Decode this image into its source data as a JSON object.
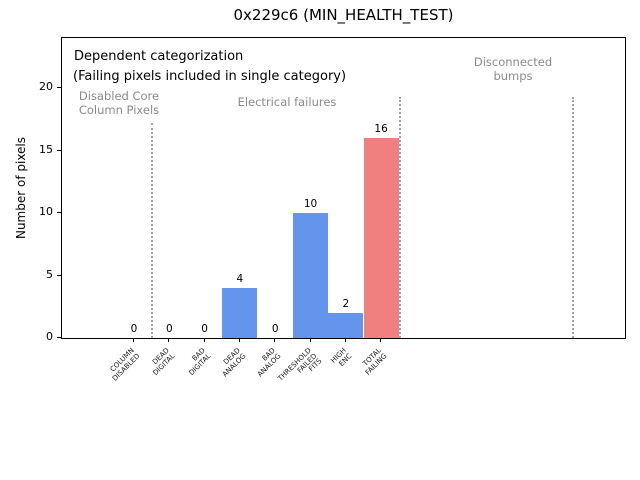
{
  "window": {
    "title": "0x229c6 (MIN_HEALTH_TEST)"
  },
  "chart_data": {
    "type": "bar",
    "title": "0x229c6 (MIN_HEALTH_TEST)",
    "xlabel": "",
    "ylabel": "Number of pixels",
    "ylim": [
      0,
      24
    ],
    "yticks": [
      0,
      5,
      10,
      15,
      20
    ],
    "grid": false,
    "legend": false,
    "categories": [
      "COLUMN\nDISABLED",
      "DEAD\nDIGITAL",
      "BAD\nDIGITAL",
      "DEAD\nANALOG",
      "BAD\nANALOG",
      "THRESHOLD\nFAILED\nFITS",
      "HIGH\nENC",
      "TOTAL\nFAILING"
    ],
    "values": [
      0,
      0,
      0,
      4,
      0,
      10,
      2,
      16
    ],
    "bar_colors": [
      "#6495ed",
      "#6495ed",
      "#6495ed",
      "#6495ed",
      "#6495ed",
      "#6495ed",
      "#6495ed",
      "#f08080"
    ],
    "annotations": {
      "line1": "Dependent categorization",
      "line2": "(Failing pixels included in single category)"
    },
    "sections": [
      {
        "label": "Disabled Core\nColumn Pixels",
        "cx": 57,
        "top": 52,
        "half_width": 75
      },
      {
        "label": "Electrical failures",
        "cx": 225,
        "top": 58,
        "half_width": 75
      },
      {
        "label": "Disconnected\nbumps",
        "cx": 451,
        "top": 18,
        "half_width": 75
      }
    ],
    "separators": [
      {
        "x": 89,
        "top": 85
      },
      {
        "x": 337,
        "top": 59
      },
      {
        "x": 510,
        "top": 59
      }
    ],
    "colors": {
      "bar_default": "#6495ed",
      "bar_total": "#f08080",
      "section_text": "#8a8a8a",
      "separator": "#a0a0a0",
      "axis": "#000000"
    }
  }
}
